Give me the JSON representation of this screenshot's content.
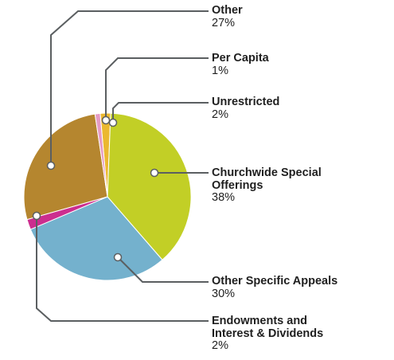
{
  "chart_data": {
    "type": "pie",
    "start_angle_deg": -5,
    "direction": "clockwise",
    "slices": [
      {
        "label": "Unrestricted",
        "value": 2,
        "value_label": "2%",
        "color": "#ebb830"
      },
      {
        "label": "Churchwide Special Offerings",
        "label_lines": [
          "Churchwide Special",
          "Offerings"
        ],
        "value": 38,
        "value_label": "38%",
        "color": "#c2cf26"
      },
      {
        "label": "Other Specific Appeals",
        "label_lines": [
          "Other Specific Appeals"
        ],
        "value": 30,
        "value_label": "30%",
        "color": "#74b1cd"
      },
      {
        "label": "Endowments and Interest & Dividends",
        "label_lines": [
          "Endowments and",
          "Interest & Dividends"
        ],
        "value": 2,
        "value_label": "2%",
        "color": "#cc2e8f"
      },
      {
        "label": "Other",
        "value": 27,
        "value_label": "27%",
        "color": "#b5862f"
      },
      {
        "label": "Per Capita",
        "value": 1,
        "value_label": "1%",
        "color": "#e59cc4"
      }
    ]
  },
  "labels": {
    "other": {
      "name": "Other",
      "pct": "27%"
    },
    "per_capita": {
      "name": "Per Capita",
      "pct": "1%"
    },
    "unrestricted": {
      "name": "Unrestricted",
      "pct": "2%"
    },
    "churchwide": {
      "name_line1": "Churchwide Special",
      "name_line2": "Offerings",
      "pct": "38%"
    },
    "other_specific": {
      "name": "Other Specific Appeals",
      "pct": "30%"
    },
    "endowments": {
      "name_line1": "Endowments and",
      "name_line2": "Interest & Dividends",
      "pct": "2%"
    }
  }
}
